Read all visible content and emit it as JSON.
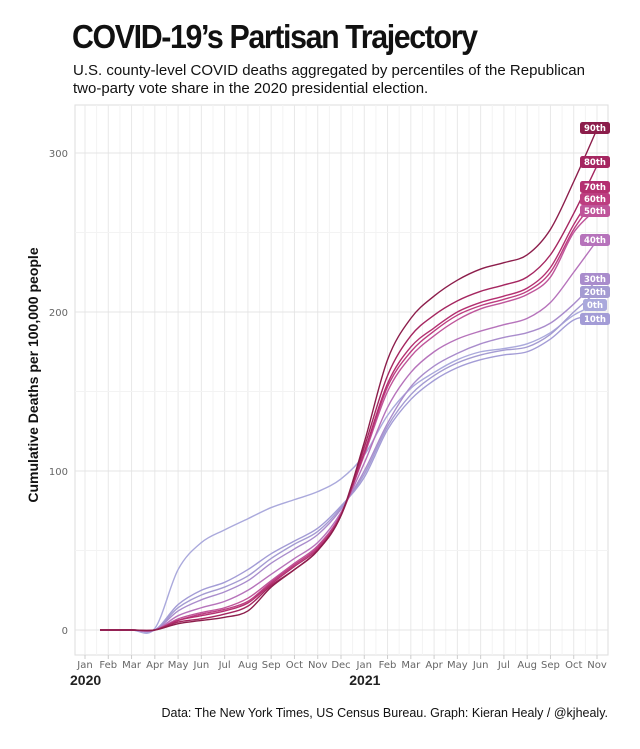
{
  "title": "COVID-19’s Partisan Trajectory",
  "subtitle": "U.S. county-level COVID deaths aggregated by percentiles of the Republican two-party vote share in the 2020 presidential election.",
  "caption": "Data: The New York Times, US Census Bureau. Graph: Kieran Healy / @kjhealy.",
  "chart_data": {
    "type": "line",
    "title": "COVID-19’s Partisan Trajectory",
    "xlabel": "",
    "ylabel": "Cumulative Deaths per 100,000 people",
    "x": [
      "2020-01",
      "2020-02",
      "2020-03",
      "2020-04",
      "2020-05",
      "2020-06",
      "2020-07",
      "2020-08",
      "2020-09",
      "2020-10",
      "2020-11",
      "2020-12",
      "2021-01",
      "2021-02",
      "2021-03",
      "2021-04",
      "2021-05",
      "2021-06",
      "2021-07",
      "2021-08",
      "2021-09",
      "2021-10",
      "2021-11"
    ],
    "x_tick_labels": [
      "Jan",
      "Feb",
      "Mar",
      "Apr",
      "May",
      "Jun",
      "Jul",
      "Aug",
      "Sep",
      "Oct",
      "Nov",
      "Dec",
      "Jan",
      "Feb",
      "Mar",
      "Apr",
      "May",
      "Jun",
      "Jul",
      "Aug",
      "Sep",
      "Oct",
      "Nov"
    ],
    "x_year_labels": [
      {
        "label": "2020",
        "at": "2020-01"
      },
      {
        "label": "2021",
        "at": "2021-01"
      }
    ],
    "y_ticks": [
      0,
      100,
      200,
      300
    ],
    "ylim": [
      -15,
      330
    ],
    "grid": true,
    "legend": "direct labels at line ends (right)",
    "series": [
      {
        "name": "90th",
        "color": "#8c1d4b",
        "values": [
          0,
          0,
          0,
          0,
          4,
          6,
          8,
          12,
          27,
          38,
          50,
          72,
          118,
          170,
          196,
          210,
          220,
          227,
          231,
          236,
          252,
          282,
          315
        ]
      },
      {
        "name": "80th",
        "color": "#a52660",
        "values": [
          0,
          0,
          0,
          0,
          5,
          7,
          10,
          15,
          28,
          38,
          50,
          72,
          115,
          160,
          185,
          198,
          207,
          213,
          217,
          222,
          236,
          262,
          292
        ]
      },
      {
        "name": "70th",
        "color": "#b42f70",
        "values": [
          0,
          0,
          0,
          0,
          6,
          9,
          12,
          17,
          29,
          40,
          51,
          72,
          112,
          155,
          178,
          190,
          200,
          206,
          210,
          215,
          228,
          255,
          278
        ]
      },
      {
        "name": "60th",
        "color": "#bd3d80",
        "values": [
          0,
          0,
          0,
          0,
          6,
          10,
          13,
          18,
          30,
          41,
          52,
          73,
          111,
          153,
          175,
          188,
          198,
          204,
          208,
          213,
          225,
          252,
          272
        ]
      },
      {
        "name": "50th",
        "color": "#bf559a",
        "values": [
          0,
          0,
          0,
          0,
          7,
          11,
          14,
          20,
          31,
          42,
          53,
          73,
          110,
          150,
          172,
          185,
          195,
          202,
          206,
          211,
          222,
          250,
          265
        ]
      },
      {
        "name": "40th",
        "color": "#b673bb",
        "values": [
          0,
          0,
          0,
          0,
          9,
          14,
          18,
          25,
          35,
          45,
          55,
          74,
          105,
          140,
          162,
          175,
          183,
          188,
          192,
          196,
          206,
          225,
          245
        ]
      },
      {
        "name": "30th",
        "color": "#a98ccc",
        "values": [
          0,
          0,
          0,
          0,
          12,
          19,
          24,
          31,
          42,
          51,
          60,
          76,
          100,
          130,
          153,
          166,
          174,
          180,
          184,
          187,
          193,
          205,
          220
        ]
      },
      {
        "name": "20th",
        "color": "#a49bd2",
        "values": [
          0,
          0,
          0,
          0,
          14,
          22,
          27,
          34,
          45,
          54,
          62,
          77,
          98,
          128,
          148,
          160,
          168,
          173,
          176,
          178,
          186,
          200,
          213
        ]
      },
      {
        "name": "0th",
        "color": "#aaa9dc",
        "values": [
          0,
          0,
          0,
          1,
          38,
          55,
          63,
          70,
          77,
          82,
          87,
          95,
          110,
          135,
          152,
          162,
          170,
          175,
          177,
          180,
          187,
          198,
          205
        ]
      },
      {
        "name": "10th",
        "color": "#a39cd6",
        "values": [
          0,
          0,
          0,
          0,
          16,
          25,
          30,
          38,
          48,
          56,
          64,
          78,
          96,
          126,
          145,
          157,
          165,
          170,
          173,
          175,
          183,
          195,
          198
        ]
      }
    ]
  }
}
